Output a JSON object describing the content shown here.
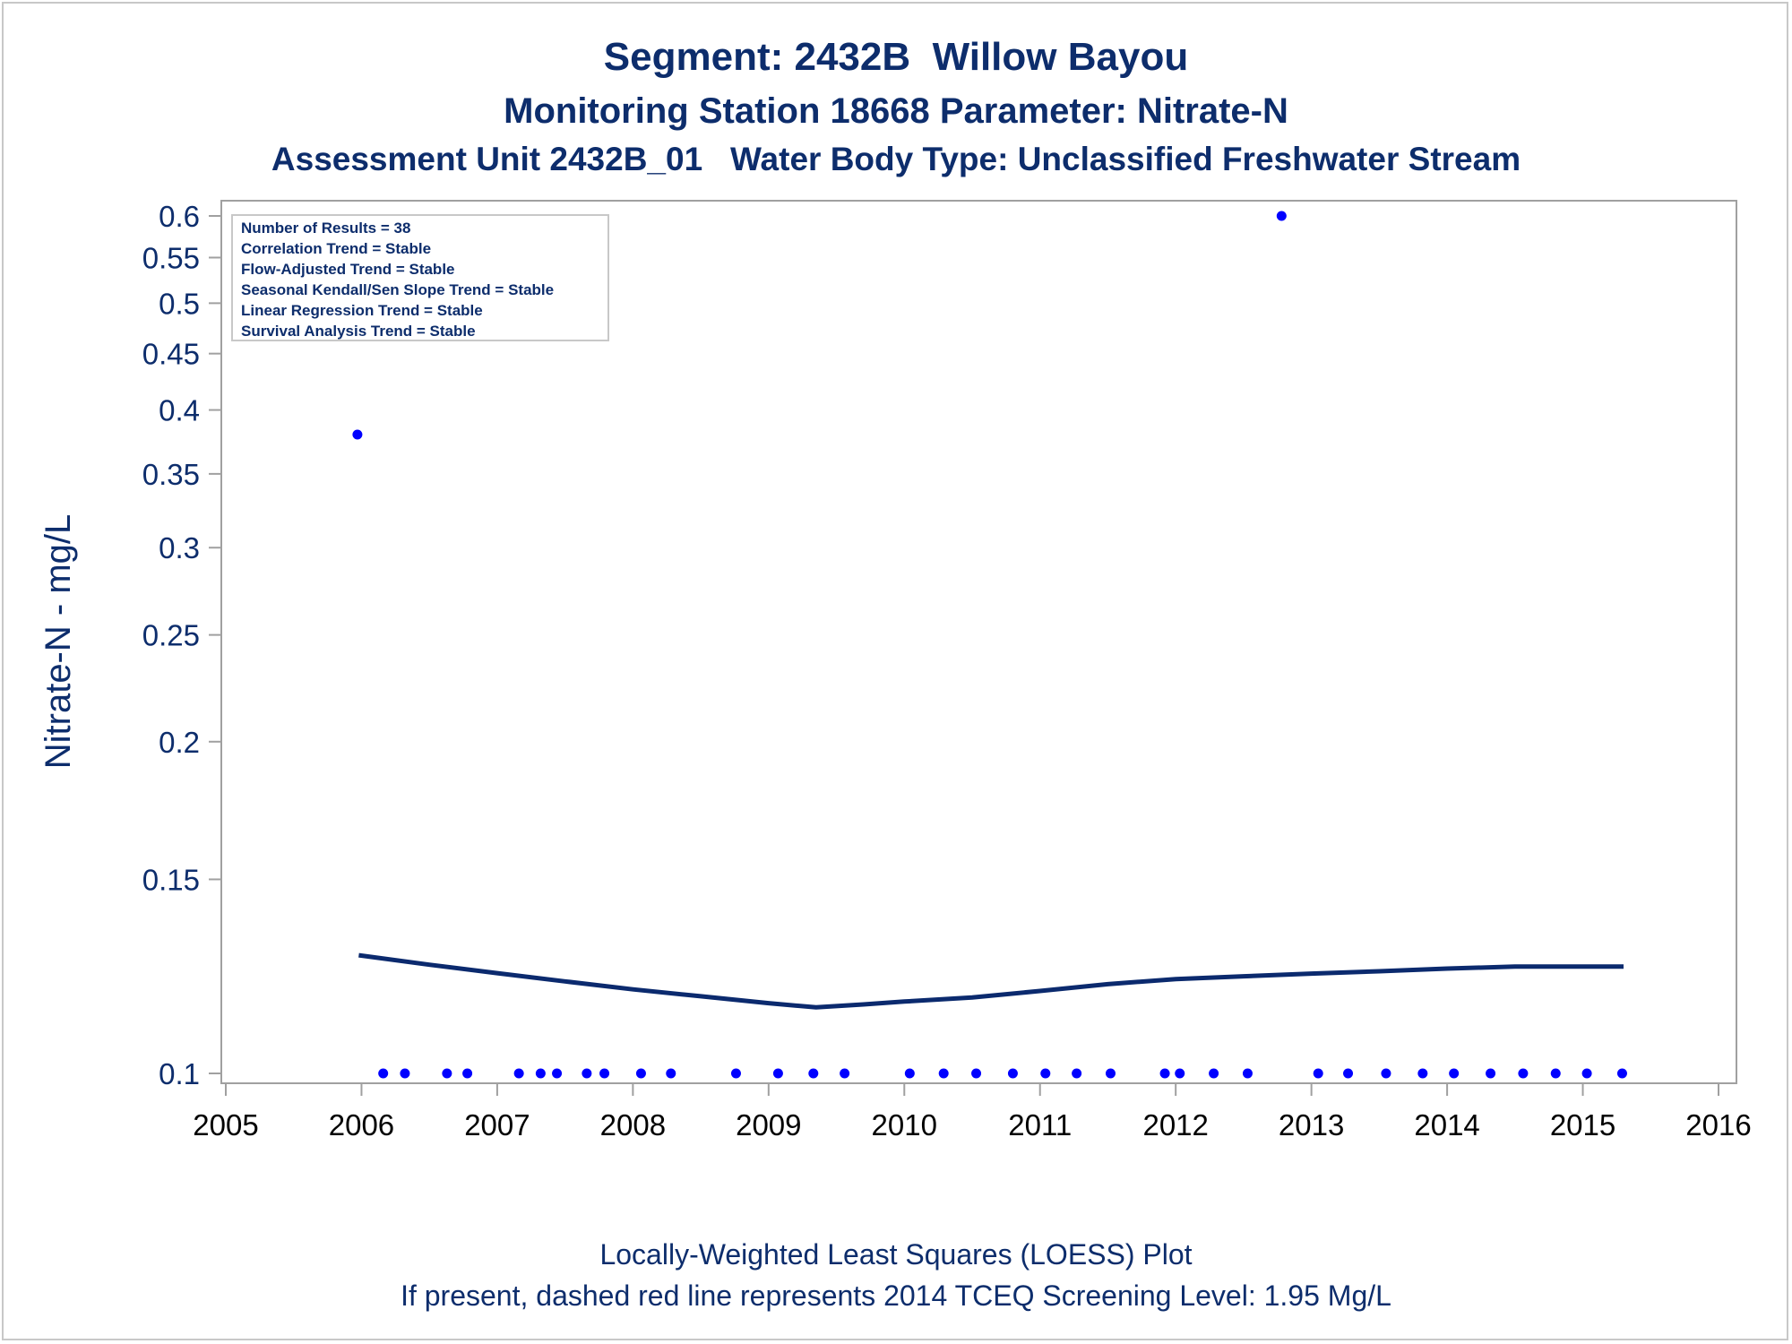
{
  "chart_data": {
    "type": "scatter",
    "title": "Segment: 2432B  Willow Bayou",
    "subtitle": "Monitoring Station 18668 Parameter: Nitrate-N",
    "subtitle2": "Assessment Unit 2432B_01   Water Body Type: Unclassified Freshwater Stream",
    "ylabel": "Nitrate-N - mg/L",
    "yscale": "log",
    "ylim": [
      0.1,
      0.6
    ],
    "xlim": [
      2005,
      2016
    ],
    "yticks": [
      0.1,
      0.15,
      0.2,
      0.25,
      0.3,
      0.35,
      0.4,
      0.45,
      0.5,
      0.55,
      0.6
    ],
    "ytick_labels": [
      "0.1",
      "0.15",
      "0.2",
      "0.25",
      "0.3",
      "0.35",
      "0.4",
      "0.45",
      "0.5",
      "0.55",
      "0.6"
    ],
    "xticks": [
      2005,
      2006,
      2007,
      2008,
      2009,
      2010,
      2011,
      2012,
      2013,
      2014,
      2015,
      2016
    ],
    "xtick_labels": [
      "2005",
      "2006",
      "2007",
      "2008",
      "2009",
      "2010",
      "2011",
      "2012",
      "2013",
      "2014",
      "2015",
      "2016"
    ],
    "legend_placement": "top-left",
    "stats": [
      "Number of Results = 38",
      "Correlation Trend = Stable",
      "Flow-Adjusted Trend = Stable",
      "Seasonal Kendall/Sen Slope Trend = Stable",
      "Linear Regression Trend = Stable",
      "Survival Analysis Trend = Stable"
    ],
    "footnote1": "Locally-Weighted Least Squares (LOESS) Plot",
    "footnote2": "If present, dashed red line represents 2014 TCEQ Screening Level: 1.95 Mg/L",
    "points": [
      {
        "x": 2005.97,
        "y": 0.38
      },
      {
        "x": 2006.16,
        "y": 0.1
      },
      {
        "x": 2006.32,
        "y": 0.1
      },
      {
        "x": 2006.63,
        "y": 0.1
      },
      {
        "x": 2006.78,
        "y": 0.1
      },
      {
        "x": 2007.16,
        "y": 0.1
      },
      {
        "x": 2007.32,
        "y": 0.1
      },
      {
        "x": 2007.44,
        "y": 0.1
      },
      {
        "x": 2007.66,
        "y": 0.1
      },
      {
        "x": 2007.79,
        "y": 0.1
      },
      {
        "x": 2008.06,
        "y": 0.1
      },
      {
        "x": 2008.28,
        "y": 0.1
      },
      {
        "x": 2008.76,
        "y": 0.1
      },
      {
        "x": 2009.07,
        "y": 0.1
      },
      {
        "x": 2009.33,
        "y": 0.1
      },
      {
        "x": 2009.56,
        "y": 0.1
      },
      {
        "x": 2010.04,
        "y": 0.1
      },
      {
        "x": 2010.29,
        "y": 0.1
      },
      {
        "x": 2010.53,
        "y": 0.1
      },
      {
        "x": 2010.8,
        "y": 0.1
      },
      {
        "x": 2011.04,
        "y": 0.1
      },
      {
        "x": 2011.27,
        "y": 0.1
      },
      {
        "x": 2011.52,
        "y": 0.1
      },
      {
        "x": 2011.92,
        "y": 0.1
      },
      {
        "x": 2012.03,
        "y": 0.1
      },
      {
        "x": 2012.28,
        "y": 0.1
      },
      {
        "x": 2012.53,
        "y": 0.1
      },
      {
        "x": 2012.78,
        "y": 0.6
      },
      {
        "x": 2013.05,
        "y": 0.1
      },
      {
        "x": 2013.27,
        "y": 0.1
      },
      {
        "x": 2013.55,
        "y": 0.1
      },
      {
        "x": 2013.82,
        "y": 0.1
      },
      {
        "x": 2014.05,
        "y": 0.1
      },
      {
        "x": 2014.32,
        "y": 0.1
      },
      {
        "x": 2014.56,
        "y": 0.1
      },
      {
        "x": 2014.8,
        "y": 0.1
      },
      {
        "x": 2015.03,
        "y": 0.1
      },
      {
        "x": 2015.29,
        "y": 0.1
      }
    ],
    "loess": [
      {
        "x": 2005.98,
        "y": 0.128
      },
      {
        "x": 2006.5,
        "y": 0.1255
      },
      {
        "x": 2007.0,
        "y": 0.1233
      },
      {
        "x": 2007.5,
        "y": 0.1212
      },
      {
        "x": 2008.0,
        "y": 0.1192
      },
      {
        "x": 2008.5,
        "y": 0.1175
      },
      {
        "x": 2009.0,
        "y": 0.1158
      },
      {
        "x": 2009.35,
        "y": 0.1148
      },
      {
        "x": 2009.7,
        "y": 0.1155
      },
      {
        "x": 2010.0,
        "y": 0.1162
      },
      {
        "x": 2010.5,
        "y": 0.1172
      },
      {
        "x": 2011.0,
        "y": 0.1188
      },
      {
        "x": 2011.5,
        "y": 0.1205
      },
      {
        "x": 2012.0,
        "y": 0.1218
      },
      {
        "x": 2012.5,
        "y": 0.1225
      },
      {
        "x": 2013.0,
        "y": 0.1232
      },
      {
        "x": 2013.5,
        "y": 0.1238
      },
      {
        "x": 2014.0,
        "y": 0.1245
      },
      {
        "x": 2014.5,
        "y": 0.125
      },
      {
        "x": 2015.0,
        "y": 0.125
      },
      {
        "x": 2015.3,
        "y": 0.125
      }
    ]
  },
  "colors": {
    "text": "#0d2d6c",
    "line": "#0b2a6e",
    "point": "#0000ff",
    "frame": "#a0a0a0",
    "legend_border": "#c8c8c8"
  }
}
